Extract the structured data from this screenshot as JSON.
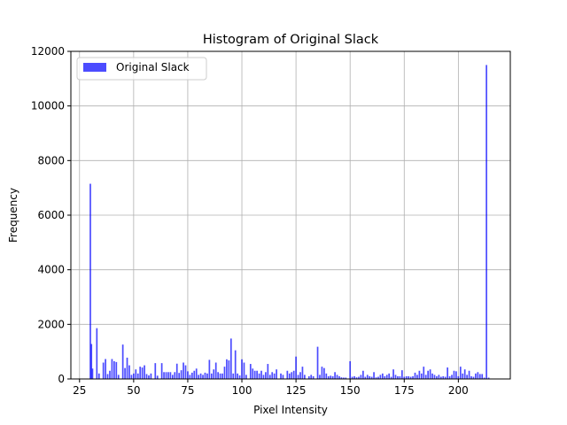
{
  "chart_data": {
    "type": "bar",
    "title": "Histogram of Original Slack",
    "xlabel": "Pixel Intensity",
    "ylabel": "Frequency",
    "xlim": [
      21,
      224
    ],
    "ylim": [
      0,
      12000
    ],
    "xticks": [
      25,
      50,
      75,
      100,
      125,
      150,
      175,
      200
    ],
    "yticks": [
      0,
      2000,
      4000,
      6000,
      8000,
      10000,
      12000
    ],
    "grid": true,
    "legend_position": "top-left",
    "bar_color": "#0000ff",
    "bar_opacity": 0.7,
    "series": [
      {
        "name": "Original Slack",
        "x": [
          30,
          30.5,
          31,
          33,
          34,
          36,
          37,
          38,
          39,
          40,
          41,
          42,
          43,
          45,
          46,
          47,
          48,
          49,
          50,
          51,
          52,
          53,
          54,
          55,
          56,
          57,
          58,
          60,
          61,
          63,
          64,
          65,
          66,
          67,
          68,
          69,
          70,
          71,
          72,
          73,
          74,
          75,
          76,
          77,
          78,
          79,
          80,
          81,
          82,
          83,
          84,
          85,
          86,
          87,
          88,
          89,
          90,
          91,
          92,
          93,
          94,
          95,
          96,
          97,
          98,
          99,
          100,
          101,
          102,
          104,
          105,
          106,
          107,
          108,
          109,
          110,
          111,
          112,
          113,
          114,
          115,
          116,
          118,
          119,
          121,
          122,
          123,
          124,
          125,
          126,
          127,
          128,
          129,
          131,
          132,
          133,
          135,
          136,
          137,
          138,
          139,
          140,
          141,
          142,
          143,
          144,
          145,
          146,
          147,
          148,
          150,
          151,
          152,
          153,
          154,
          155,
          156,
          157,
          158,
          159,
          160,
          161,
          162,
          163,
          164,
          165,
          166,
          167,
          168,
          169,
          170,
          171,
          172,
          173,
          174,
          175,
          176,
          177,
          178,
          179,
          180,
          181,
          182,
          183,
          184,
          185,
          186,
          187,
          188,
          189,
          190,
          191,
          192,
          193,
          194,
          195,
          196,
          197,
          198,
          199,
          200,
          201,
          202,
          203,
          204,
          205,
          206,
          207,
          208,
          209,
          210,
          211,
          212,
          213,
          214
        ],
        "values": [
          7150,
          1280,
          380,
          1860,
          200,
          600,
          730,
          180,
          300,
          730,
          650,
          620,
          150,
          1260,
          400,
          780,
          500,
          150,
          200,
          350,
          200,
          450,
          420,
          500,
          180,
          130,
          200,
          580,
          120,
          580,
          250,
          250,
          250,
          250,
          150,
          250,
          560,
          220,
          320,
          600,
          500,
          280,
          150,
          230,
          300,
          380,
          150,
          200,
          150,
          230,
          200,
          700,
          200,
          350,
          600,
          250,
          200,
          200,
          450,
          720,
          680,
          1480,
          200,
          1050,
          200,
          130,
          720,
          600,
          150,
          550,
          380,
          300,
          300,
          200,
          300,
          150,
          250,
          550,
          150,
          250,
          200,
          350,
          200,
          150,
          300,
          200,
          250,
          300,
          820,
          150,
          250,
          450,
          150,
          100,
          150,
          100,
          1180,
          150,
          450,
          400,
          200,
          100,
          120,
          100,
          250,
          150,
          100,
          60,
          50,
          50,
          650,
          80,
          100,
          60,
          80,
          150,
          300,
          80,
          150,
          100,
          80,
          250,
          60,
          80,
          150,
          200,
          100,
          150,
          200,
          80,
          350,
          150,
          100,
          100,
          320,
          80,
          100,
          100,
          80,
          100,
          230,
          150,
          300,
          200,
          450,
          150,
          300,
          350,
          200,
          150,
          100,
          150,
          80,
          100,
          80,
          420,
          100,
          150,
          300,
          280,
          100,
          450,
          200,
          350,
          150,
          300,
          100,
          80,
          200,
          250,
          180,
          180,
          50,
          11500,
          50
        ]
      }
    ]
  }
}
